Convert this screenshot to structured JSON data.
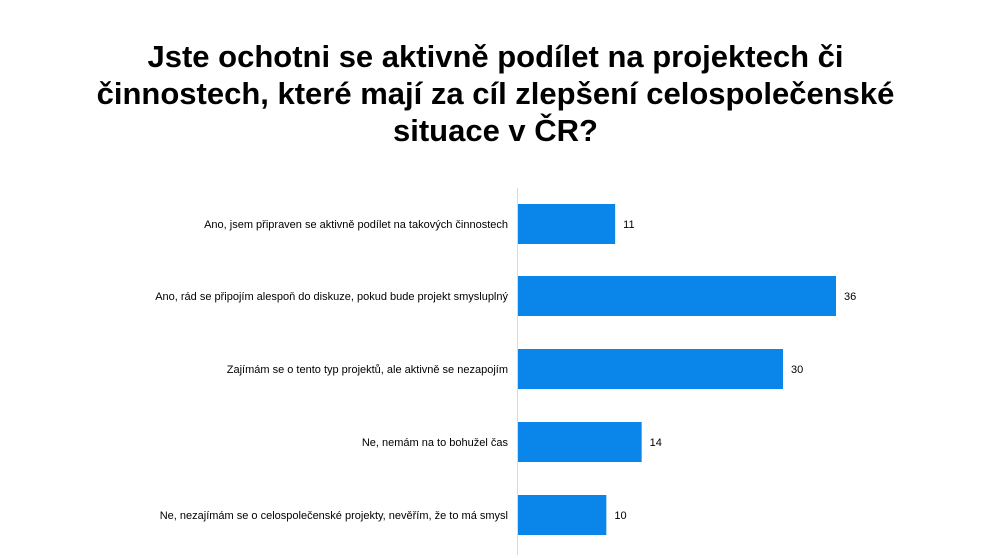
{
  "chart_data": {
    "type": "bar",
    "orientation": "horizontal",
    "title": "Jste ochotni se aktivně podílet na projektech či činnostech, které mají za cíl zlepšení celospolečenské situace v ČR?",
    "categories": [
      "Ano, jsem připraven se aktivně podílet na takových činnostech",
      "Ano, rád se připojím alespoň do diskuze, pokud bude projekt smysluplný",
      "Zajímám se o tento typ projektů, ale aktivně se nezapojím",
      "Ne, nemám na to bohužel čas",
      "Ne, nezajímám se o celospolečenské projekty, nevěřím, že to má smysl"
    ],
    "values": [
      11,
      36,
      30,
      14,
      10
    ],
    "xlim": [
      0,
      40
    ],
    "grid": false,
    "legend": "none",
    "bar_color": "#0a86ea"
  }
}
